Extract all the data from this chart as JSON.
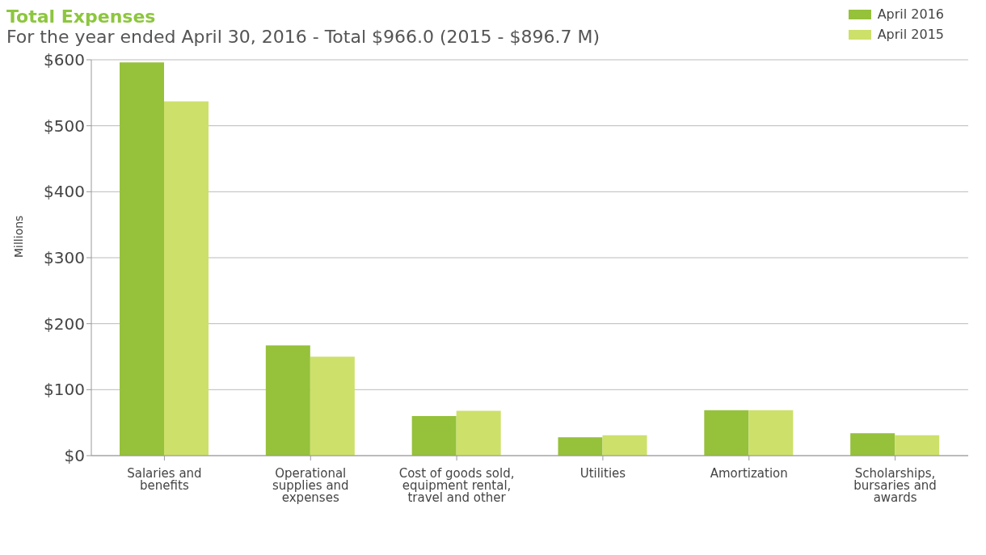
{
  "chart_data": {
    "type": "bar",
    "title": "Total Expenses",
    "subtitle": "For the year ended April 30, 2016 - Total $966.0 (2015 - $896.7 M)",
    "ylabel": "Millions",
    "categories": [
      "Salaries and benefits",
      "Operational supplies and expenses",
      "Cost of goods sold, equipment rental, travel and other",
      "Utilities",
      "Amortization",
      "Scholarships, bursaries and awards"
    ],
    "series": [
      {
        "name": "April 2016",
        "color": "#96c13b",
        "values": [
          596,
          167,
          60,
          28,
          69,
          34
        ]
      },
      {
        "name": "April 2015",
        "color": "#cde06a",
        "values": [
          537,
          150,
          68,
          31,
          69,
          31
        ]
      }
    ],
    "ylim": [
      0,
      600
    ],
    "yticks": [
      {
        "value": 0,
        "label": "$0"
      },
      {
        "value": 100,
        "label": "$100"
      },
      {
        "value": 200,
        "label": "$200"
      },
      {
        "value": 300,
        "label": "$300"
      },
      {
        "value": 400,
        "label": "$400"
      },
      {
        "value": 500,
        "label": "$500"
      },
      {
        "value": 600,
        "label": "$600"
      }
    ],
    "grid": "y",
    "legend": "top right"
  }
}
